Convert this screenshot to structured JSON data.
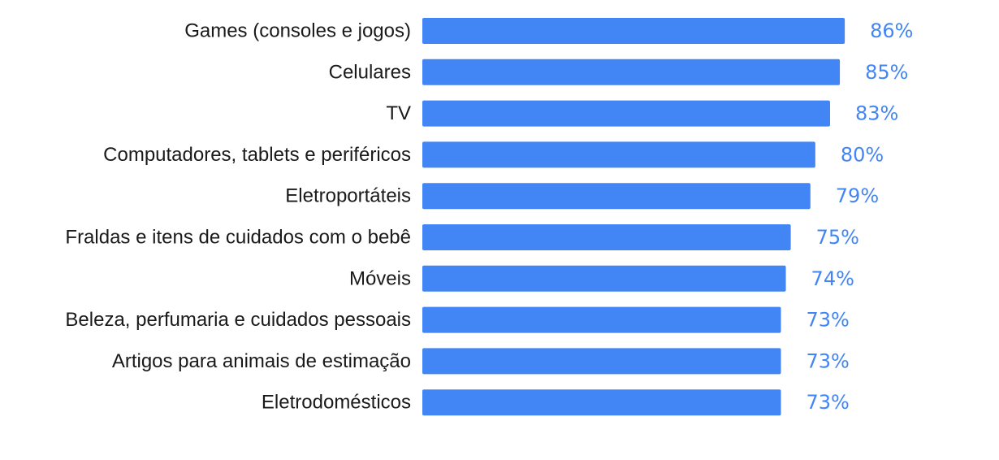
{
  "chart_data": {
    "type": "bar",
    "orientation": "horizontal",
    "categories": [
      "Games (consoles e jogos)",
      "Celulares",
      "TV",
      "Computadores, tablets e periféricos",
      "Eletroportáteis",
      "Fraldas e itens de cuidados com o bebê",
      "Móveis",
      "Beleza, perfumaria e cuidados pessoais",
      "Artigos para animais de estimação",
      "Eletrodomésticos"
    ],
    "values": [
      86,
      85,
      83,
      80,
      79,
      75,
      74,
      73,
      73,
      73
    ],
    "value_labels": [
      "86%",
      "85%",
      "83%",
      "80%",
      "79%",
      "75%",
      "74%",
      "73%",
      "73%",
      "73%"
    ],
    "unit": "%",
    "grid": false,
    "legend": "none",
    "colors": {
      "bar": "#4285f4",
      "value_label": "#4285f4",
      "category_label": "#1a1a1a"
    }
  }
}
